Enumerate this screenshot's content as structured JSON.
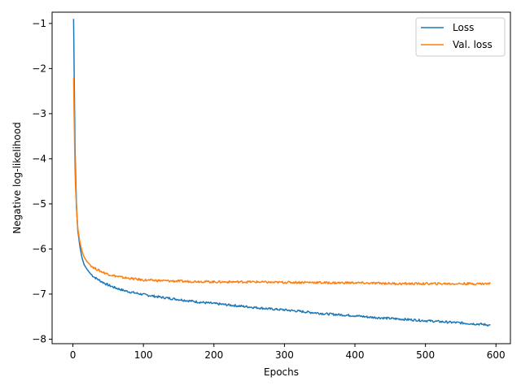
{
  "chart_data": {
    "type": "line",
    "title": "",
    "xlabel": "Epochs",
    "ylabel": "Negative log-likelihood",
    "xlim": [
      -29.5,
      620.5
    ],
    "ylim": [
      -8.1,
      -0.75
    ],
    "xticks": [
      0,
      100,
      200,
      300,
      400,
      500,
      600
    ],
    "yticks": [
      -1,
      -2,
      -3,
      -4,
      -5,
      -6,
      -7,
      -8
    ],
    "xtick_labels": [
      "0",
      "100",
      "200",
      "300",
      "400",
      "500",
      "600"
    ],
    "ytick_labels": [
      "−1",
      "−2",
      "−3",
      "−4",
      "−5",
      "−6",
      "−7",
      "−8"
    ],
    "grid": false,
    "legend_position": "top-right",
    "series": [
      {
        "name": "Loss",
        "color": "#1f77b4",
        "x": [
          1,
          2,
          3,
          5,
          7,
          10,
          13,
          16,
          20,
          25,
          30,
          40,
          50,
          60,
          70,
          80,
          90,
          100,
          120,
          140,
          160,
          180,
          200,
          220,
          240,
          260,
          280,
          300,
          320,
          340,
          360,
          380,
          400,
          420,
          440,
          460,
          480,
          500,
          520,
          540,
          560,
          580,
          592
        ],
        "y": [
          -0.9,
          -2.4,
          -3.8,
          -5.0,
          -5.6,
          -5.95,
          -6.2,
          -6.35,
          -6.45,
          -6.55,
          -6.62,
          -6.72,
          -6.8,
          -6.86,
          -6.91,
          -6.95,
          -6.98,
          -7.01,
          -7.06,
          -7.1,
          -7.14,
          -7.18,
          -7.21,
          -7.24,
          -7.27,
          -7.3,
          -7.33,
          -7.35,
          -7.38,
          -7.41,
          -7.44,
          -7.46,
          -7.48,
          -7.51,
          -7.53,
          -7.55,
          -7.57,
          -7.59,
          -7.61,
          -7.63,
          -7.65,
          -7.67,
          -7.69
        ]
      },
      {
        "name": "Val. loss",
        "color": "#ff7f0e",
        "x": [
          1,
          2,
          3,
          5,
          7,
          10,
          13,
          16,
          20,
          25,
          30,
          40,
          50,
          60,
          70,
          80,
          90,
          100,
          120,
          140,
          160,
          180,
          200,
          220,
          240,
          260,
          280,
          300,
          320,
          340,
          360,
          380,
          400,
          420,
          440,
          460,
          480,
          500,
          520,
          540,
          560,
          580,
          592
        ],
        "y": [
          -2.2,
          -3.3,
          -4.3,
          -5.1,
          -5.55,
          -5.85,
          -6.05,
          -6.18,
          -6.28,
          -6.36,
          -6.42,
          -6.5,
          -6.56,
          -6.6,
          -6.63,
          -6.65,
          -6.67,
          -6.69,
          -6.7,
          -6.71,
          -6.72,
          -6.72,
          -6.73,
          -6.73,
          -6.73,
          -6.73,
          -6.74,
          -6.74,
          -6.74,
          -6.74,
          -6.75,
          -6.75,
          -6.75,
          -6.76,
          -6.76,
          -6.77,
          -6.77,
          -6.77,
          -6.77,
          -6.77,
          -6.77,
          -6.77,
          -6.77
        ]
      }
    ]
  }
}
